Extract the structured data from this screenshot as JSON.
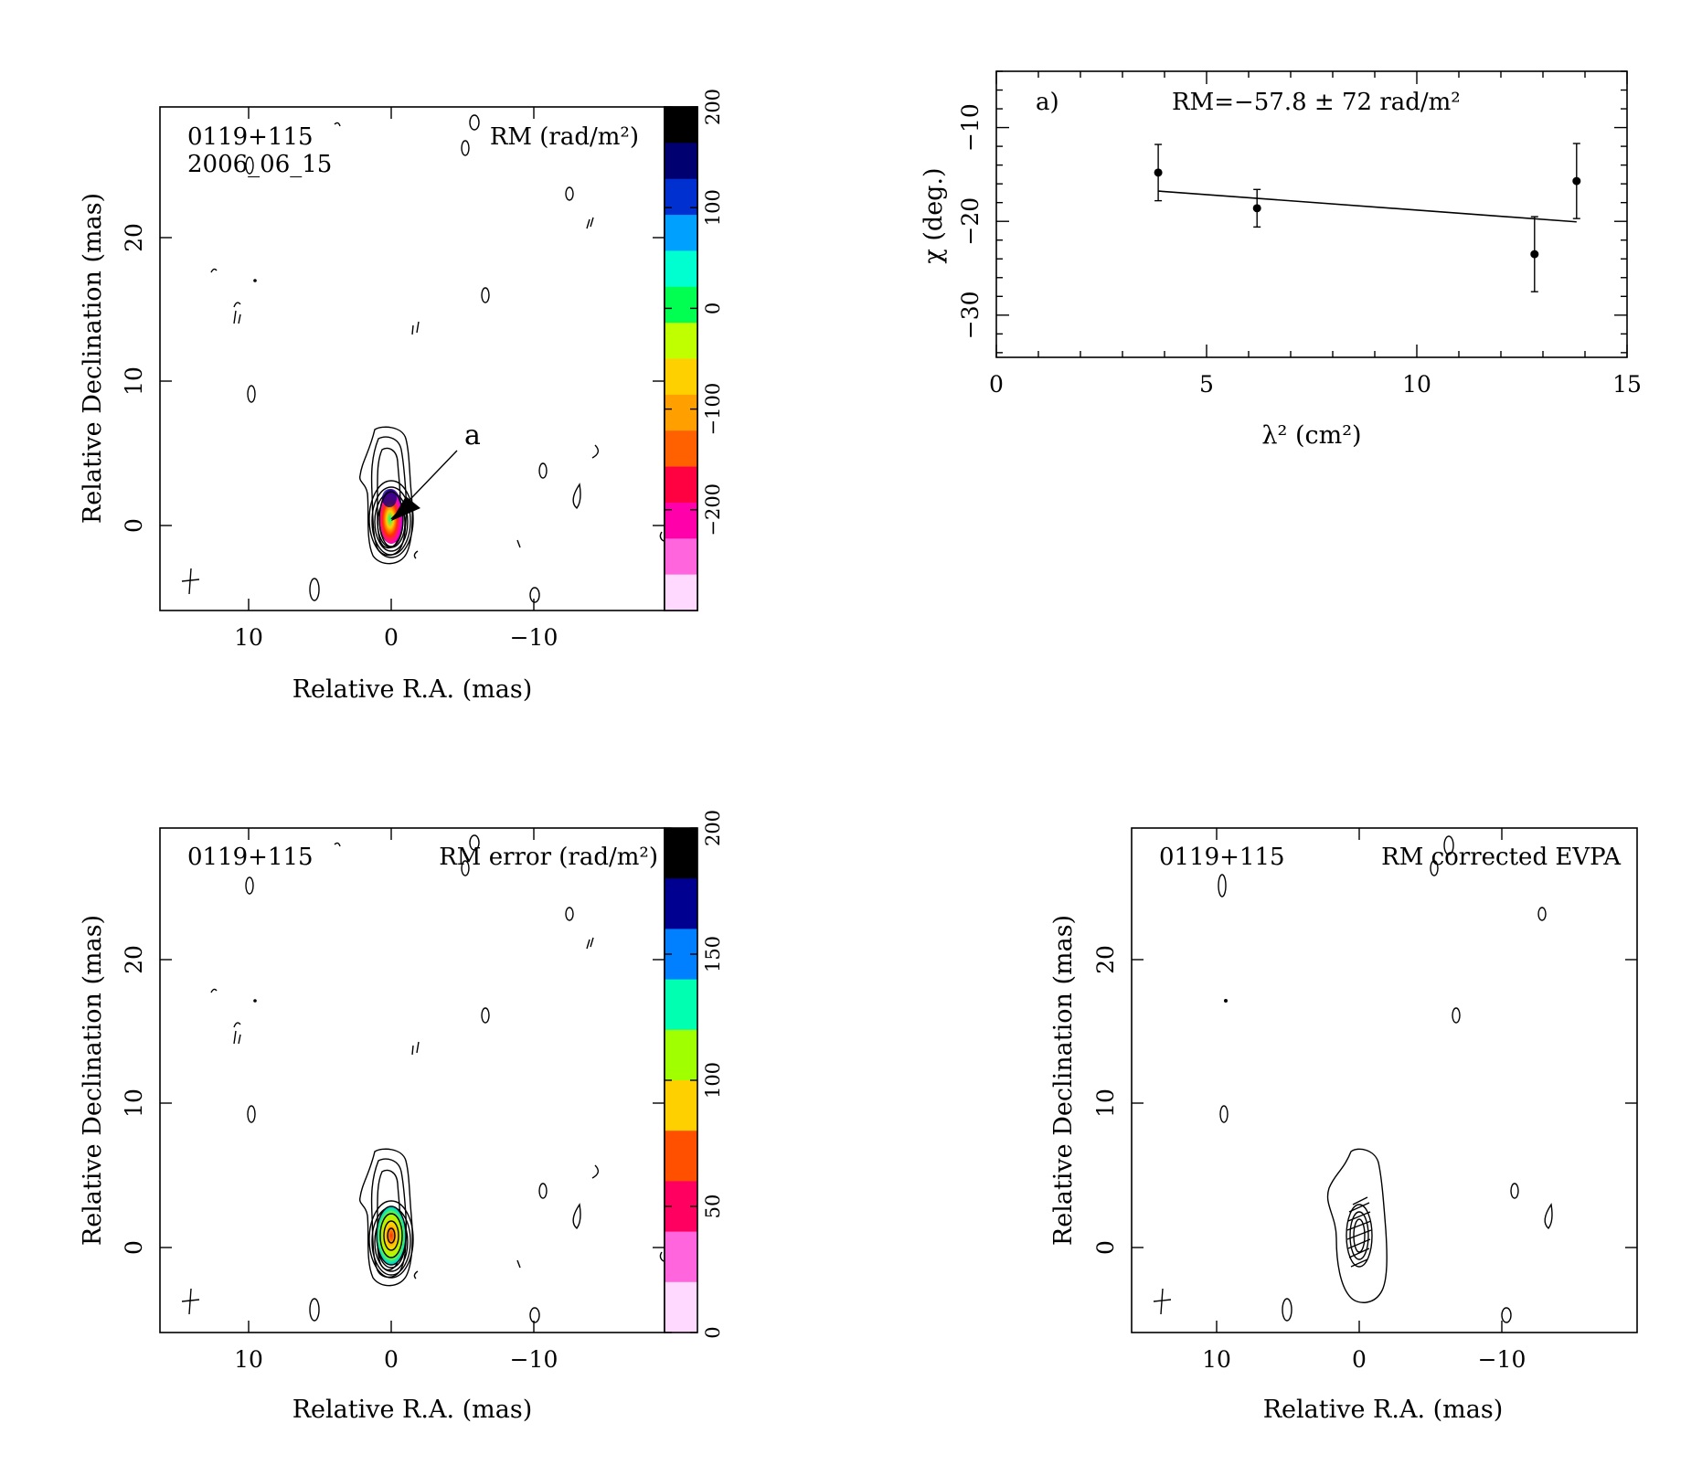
{
  "source_name": "0119+115",
  "epoch": "2006_06_15",
  "panels": {
    "rm_map": {
      "label": "RM (rad/m²)",
      "xlabel": "Relative R.A. (mas)",
      "ylabel": "Relative Declination (mas)",
      "xticks": [
        "10",
        "0",
        "−10"
      ],
      "yticks": [
        "0",
        "10",
        "20"
      ],
      "colorbar_ticks": [
        "200",
        "100",
        "0",
        "−100",
        "−200"
      ],
      "colorbar_range": [
        -300,
        200
      ],
      "marker": "a"
    },
    "rm_error_map": {
      "label": "RM error (rad/m²)",
      "xlabel": "Relative R.A. (mas)",
      "ylabel": "Relative Declination (mas)",
      "xticks": [
        "10",
        "0",
        "−10"
      ],
      "yticks": [
        "0",
        "10",
        "20"
      ],
      "colorbar_ticks": [
        "200",
        "150",
        "100",
        "50",
        "0"
      ],
      "colorbar_range": [
        0,
        200
      ]
    },
    "evpa_map": {
      "label": "RM corrected EVPA",
      "xlabel": "Relative R.A. (mas)",
      "ylabel": "Relative Declination (mas)",
      "xticks": [
        "10",
        "0",
        "−10"
      ],
      "yticks": [
        "0",
        "10",
        "20"
      ]
    },
    "fit": {
      "tag": "a)",
      "result": "RM=−57.8 ± 72 rad/m²",
      "xlabel": "λ² (cm²)",
      "ylabel": "χ (deg.)"
    }
  },
  "colors": {
    "rm_colormap": [
      "#ffd9ff",
      "#ff66dd",
      "#ff00aa",
      "#ff0040",
      "#ff6000",
      "#ffa000",
      "#ffd000",
      "#c0ff00",
      "#00ff50",
      "#00ffd0",
      "#00a0ff",
      "#0030d0",
      "#000070",
      "#000000"
    ],
    "error_colormap": [
      "#ffd9ff",
      "#ff66dd",
      "#ff0060",
      "#ff5000",
      "#ffd000",
      "#a0ff00",
      "#00ffb0",
      "#0080ff",
      "#000090",
      "#000000"
    ]
  },
  "chart_data": [
    {
      "type": "scatter",
      "title": "0119+115",
      "xlabel": "λ² (cm²)",
      "ylabel": "χ (deg.)",
      "xlim": [
        0,
        15
      ],
      "ylim": [
        -34.5,
        -4
      ],
      "xticks": [
        0,
        5,
        10,
        15
      ],
      "yticks": [
        -10,
        -20,
        -30
      ],
      "points": [
        {
          "x": 3.85,
          "y": -14.8,
          "err": 3.0
        },
        {
          "x": 6.2,
          "y": -18.6,
          "err": 2.0
        },
        {
          "x": 12.8,
          "y": -23.5,
          "err": 4.0
        },
        {
          "x": 13.8,
          "y": -15.7,
          "err": 4.0
        }
      ],
      "fit": {
        "slope": -0.33,
        "intercept": -15.5,
        "x_range": [
          3.85,
          13.8
        ],
        "rm": -57.8,
        "rm_error": 72
      },
      "annotation": "RM=−57.8 ± 72 rad/m²"
    },
    {
      "type": "heatmap",
      "title": "RM (rad/m²)",
      "xlabel": "Relative R.A. (mas)",
      "ylabel": "Relative Declination (mas)",
      "xlim": [
        16,
        -19
      ],
      "ylim": [
        -6,
        29
      ],
      "colorbar": {
        "range": [
          -300,
          200
        ],
        "ticks": [
          200,
          100,
          0,
          -100,
          -200
        ]
      },
      "core": {
        "ra": 0,
        "dec": 0.5,
        "rm_range": [
          -250,
          180
        ]
      }
    },
    {
      "type": "heatmap",
      "title": "RM error (rad/m²)",
      "xlabel": "Relative R.A. (mas)",
      "ylabel": "Relative Declination (mas)",
      "xlim": [
        16,
        -19
      ],
      "ylim": [
        -6,
        29
      ],
      "colorbar": {
        "range": [
          0,
          200
        ],
        "ticks": [
          200,
          150,
          100,
          50,
          0
        ]
      }
    }
  ]
}
